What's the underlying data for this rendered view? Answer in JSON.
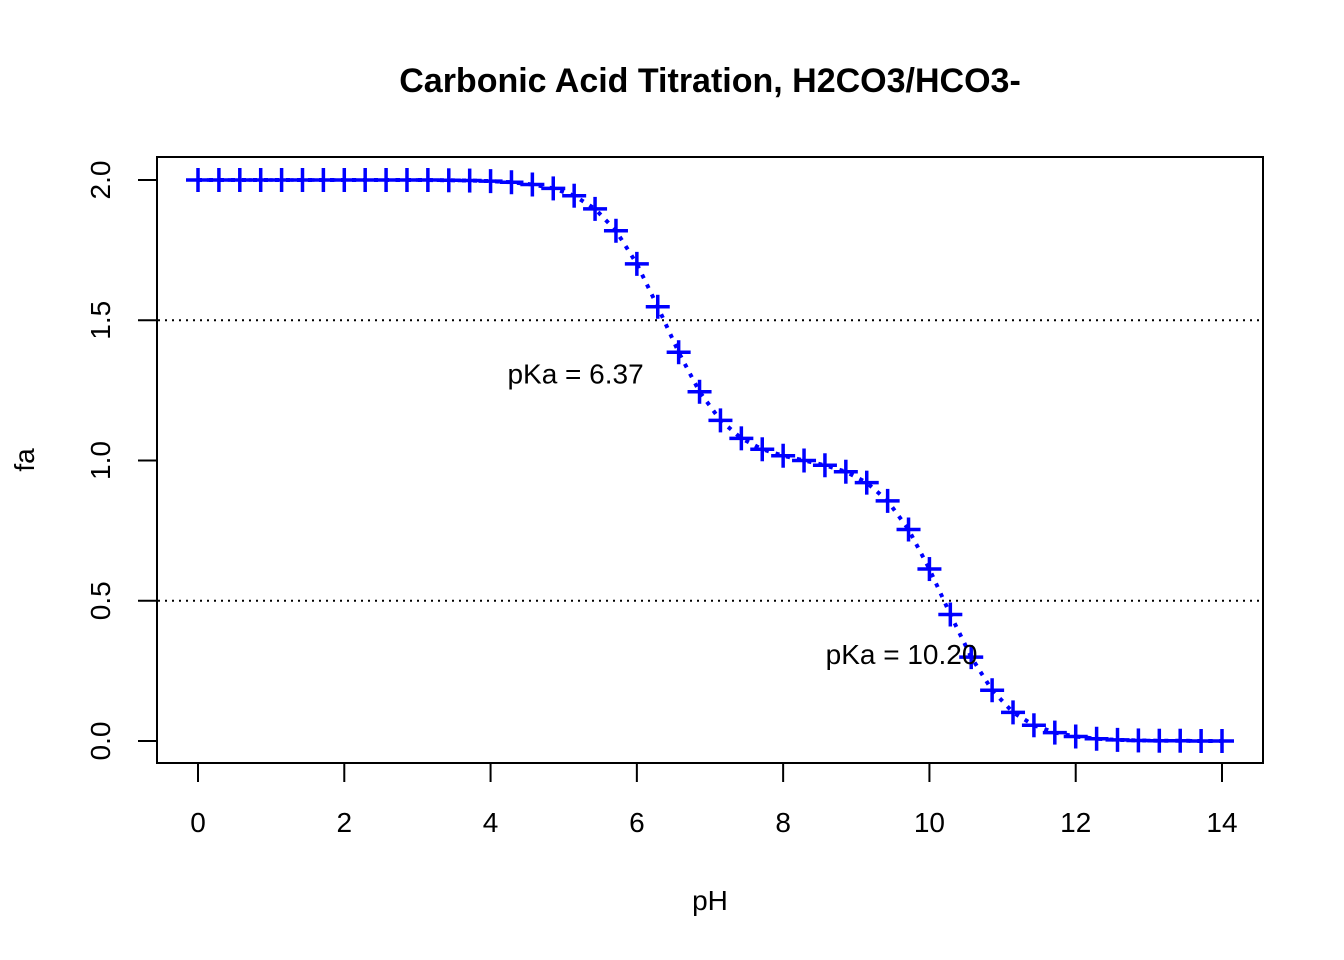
{
  "chart_data": {
    "type": "line",
    "title": "Carbonic Acid Titration, H2CO3/HCO3-",
    "xlabel": "pH",
    "ylabel": "fa",
    "xlim": [
      0,
      14
    ],
    "ylim": [
      0,
      2
    ],
    "x_ticks": [
      "0",
      "2",
      "4",
      "6",
      "8",
      "10",
      "12",
      "14"
    ],
    "y_ticks": [
      "0.0",
      "0.5",
      "1.0",
      "1.5",
      "2.0"
    ],
    "grid": false,
    "series_color": "#0000ff",
    "marker": "plus",
    "line_style": "dotted",
    "x": [
      0,
      0.2857,
      0.5714,
      0.8571,
      1.1429,
      1.4286,
      1.7143,
      2.0,
      2.2857,
      2.5714,
      2.8571,
      3.1429,
      3.4286,
      3.7143,
      4.0,
      4.2857,
      4.5714,
      4.8571,
      5.1429,
      5.4286,
      5.7143,
      6.0,
      6.2857,
      6.5714,
      6.8571,
      7.1429,
      7.4286,
      7.7143,
      8.0,
      8.2857,
      8.5714,
      8.8571,
      9.1429,
      9.4286,
      9.7143,
      10.0,
      10.2857,
      10.5714,
      10.8571,
      11.1429,
      11.4286,
      11.7143,
      12.0,
      12.2857,
      12.5714,
      12.8571,
      13.1429,
      13.4286,
      13.7143,
      14.0
    ],
    "y": [
      2.0,
      2.0,
      2.0,
      2.0,
      2.0,
      2.0,
      2.0,
      2.0,
      2.0,
      2.0,
      2.0,
      2.0,
      1.999,
      1.998,
      1.996,
      1.992,
      1.984,
      1.97,
      1.944,
      1.897,
      1.819,
      1.701,
      1.548,
      1.386,
      1.245,
      1.143,
      1.079,
      1.04,
      1.017,
      1.0,
      0.983,
      0.96,
      0.921,
      0.856,
      0.754,
      0.613,
      0.451,
      0.299,
      0.181,
      0.102,
      0.056,
      0.03,
      0.016,
      0.008,
      0.004,
      0.002,
      0.001,
      0.001,
      0.0,
      0.0
    ],
    "reference_lines": [
      1.5,
      0.5
    ],
    "annotations": [
      {
        "text": "pKa = 6.37",
        "x": 4.6,
        "y": 1.31
      },
      {
        "text": "pKa = 10.20",
        "x": 8.95,
        "y": 0.31
      }
    ]
  }
}
